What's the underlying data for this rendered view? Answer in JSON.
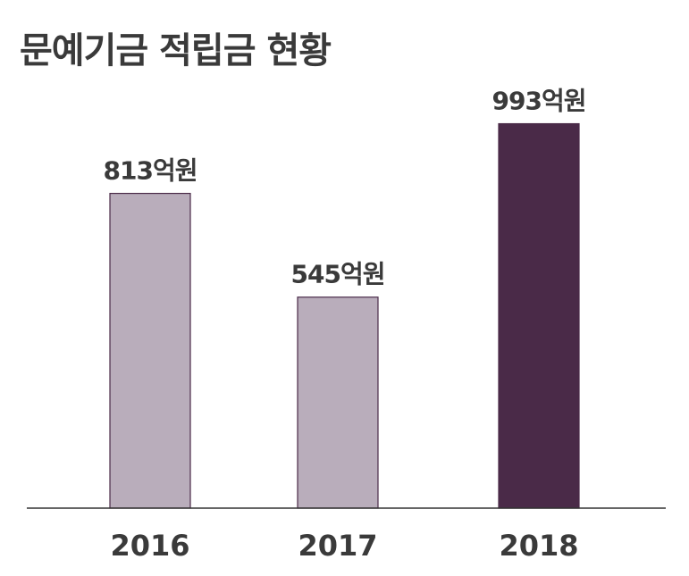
{
  "chart_data": {
    "type": "bar",
    "title": "문예기금 적립금 현황",
    "categories": [
      "2016",
      "2017",
      "2018"
    ],
    "values": [
      813,
      545,
      993
    ],
    "data_labels": [
      "813억원",
      "545억원",
      "993억원"
    ],
    "unit": "억원",
    "xlabel": "",
    "ylabel": "",
    "ylim": [
      0,
      1070
    ],
    "grid": false,
    "legend": "none",
    "colors": {
      "default_bar": "#b9adbb",
      "highlight_bar": "#4a2a48",
      "bar_border": "#4a2a48",
      "axis": "#333333",
      "text": "#3a3a3a"
    },
    "highlight_index": 2
  }
}
